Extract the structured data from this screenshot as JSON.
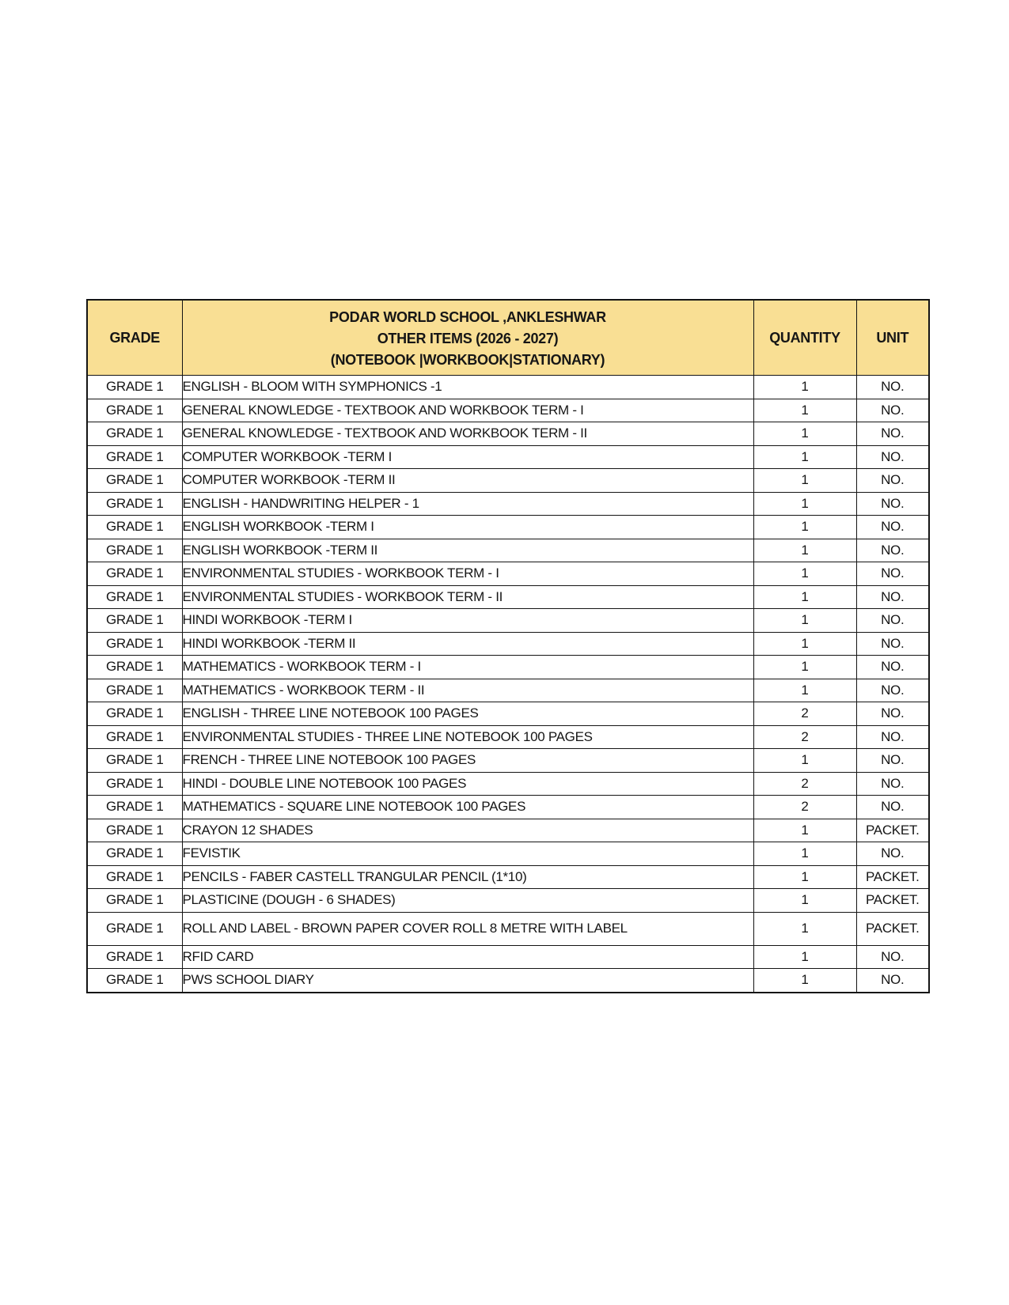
{
  "table": {
    "header": {
      "grade_label": "GRADE",
      "title_line1": "PODAR WORLD SCHOOL ,ANKLESHWAR",
      "title_line2": "OTHER ITEMS (2026 - 2027)",
      "title_line3": "(NOTEBOOK |WORKBOOK|STATIONARY)",
      "quantity_label": "QUANTITY",
      "unit_label": "UNIT"
    },
    "rows": [
      {
        "grade": "GRADE 1",
        "item": "ENGLISH - BLOOM WITH SYMPHONICS -1",
        "quantity": "1",
        "unit": "NO."
      },
      {
        "grade": "GRADE 1",
        "item": "GENERAL KNOWLEDGE - TEXTBOOK AND WORKBOOK TERM - I",
        "quantity": "1",
        "unit": "NO."
      },
      {
        "grade": "GRADE 1",
        "item": "GENERAL KNOWLEDGE - TEXTBOOK AND WORKBOOK TERM - II",
        "quantity": "1",
        "unit": "NO."
      },
      {
        "grade": "GRADE 1",
        "item": "COMPUTER WORKBOOK -TERM I",
        "quantity": "1",
        "unit": "NO."
      },
      {
        "grade": "GRADE 1",
        "item": "COMPUTER WORKBOOK -TERM II",
        "quantity": "1",
        "unit": "NO."
      },
      {
        "grade": "GRADE 1",
        "item": "ENGLISH - HANDWRITING HELPER - 1",
        "quantity": "1",
        "unit": "NO."
      },
      {
        "grade": "GRADE 1",
        "item": "ENGLISH WORKBOOK -TERM I",
        "quantity": "1",
        "unit": "NO."
      },
      {
        "grade": "GRADE 1",
        "item": "ENGLISH WORKBOOK -TERM II",
        "quantity": "1",
        "unit": "NO."
      },
      {
        "grade": "GRADE 1",
        "item": "ENVIRONMENTAL STUDIES - WORKBOOK TERM - I",
        "quantity": "1",
        "unit": "NO."
      },
      {
        "grade": "GRADE 1",
        "item": "ENVIRONMENTAL STUDIES - WORKBOOK TERM - II",
        "quantity": "1",
        "unit": "NO."
      },
      {
        "grade": "GRADE 1",
        "item": "HINDI WORKBOOK -TERM I",
        "quantity": "1",
        "unit": "NO."
      },
      {
        "grade": "GRADE 1",
        "item": "HINDI WORKBOOK -TERM II",
        "quantity": "1",
        "unit": "NO."
      },
      {
        "grade": "GRADE 1",
        "item": "MATHEMATICS - WORKBOOK TERM - I",
        "quantity": "1",
        "unit": "NO."
      },
      {
        "grade": "GRADE 1",
        "item": "MATHEMATICS - WORKBOOK TERM - II",
        "quantity": "1",
        "unit": "NO."
      },
      {
        "grade": "GRADE 1",
        "item": "ENGLISH - THREE LINE NOTEBOOK 100 PAGES",
        "quantity": "2",
        "unit": "NO."
      },
      {
        "grade": "GRADE 1",
        "item": "ENVIRONMENTAL STUDIES - THREE LINE NOTEBOOK 100 PAGES",
        "quantity": "2",
        "unit": "NO."
      },
      {
        "grade": "GRADE 1",
        "item": "FRENCH - THREE LINE NOTEBOOK 100 PAGES",
        "quantity": "1",
        "unit": "NO."
      },
      {
        "grade": "GRADE 1",
        "item": "HINDI - DOUBLE LINE NOTEBOOK 100 PAGES",
        "quantity": "2",
        "unit": "NO."
      },
      {
        "grade": "GRADE 1",
        "item": "MATHEMATICS - SQUARE LINE NOTEBOOK 100 PAGES",
        "quantity": "2",
        "unit": "NO."
      },
      {
        "grade": "GRADE 1",
        "item": "CRAYON 12 SHADES",
        "quantity": "1",
        "unit": "PACKET."
      },
      {
        "grade": "GRADE 1",
        "item": "FEVISTIK",
        "quantity": "1",
        "unit": "NO."
      },
      {
        "grade": "GRADE 1",
        "item": "PENCILS - FABER CASTELL TRANGULAR PENCIL (1*10)",
        "quantity": "1",
        "unit": "PACKET."
      },
      {
        "grade": "GRADE 1",
        "item": "PLASTICINE (DOUGH - 6 SHADES)",
        "quantity": "1",
        "unit": "PACKET."
      },
      {
        "grade": "GRADE 1",
        "item": "ROLL AND LABEL - BROWN PAPER COVER ROLL 8 METRE WITH LABEL",
        "quantity": "1",
        "unit": "PACKET."
      },
      {
        "grade": "GRADE 1",
        "item": "RFID CARD",
        "quantity": "1",
        "unit": "NO."
      },
      {
        "grade": "GRADE 1",
        "item": "PWS SCHOOL DIARY",
        "quantity": "1",
        "unit": "NO."
      }
    ],
    "colors": {
      "header_bg": "#F9DF94",
      "border": "#141414",
      "text": "#161616"
    }
  }
}
